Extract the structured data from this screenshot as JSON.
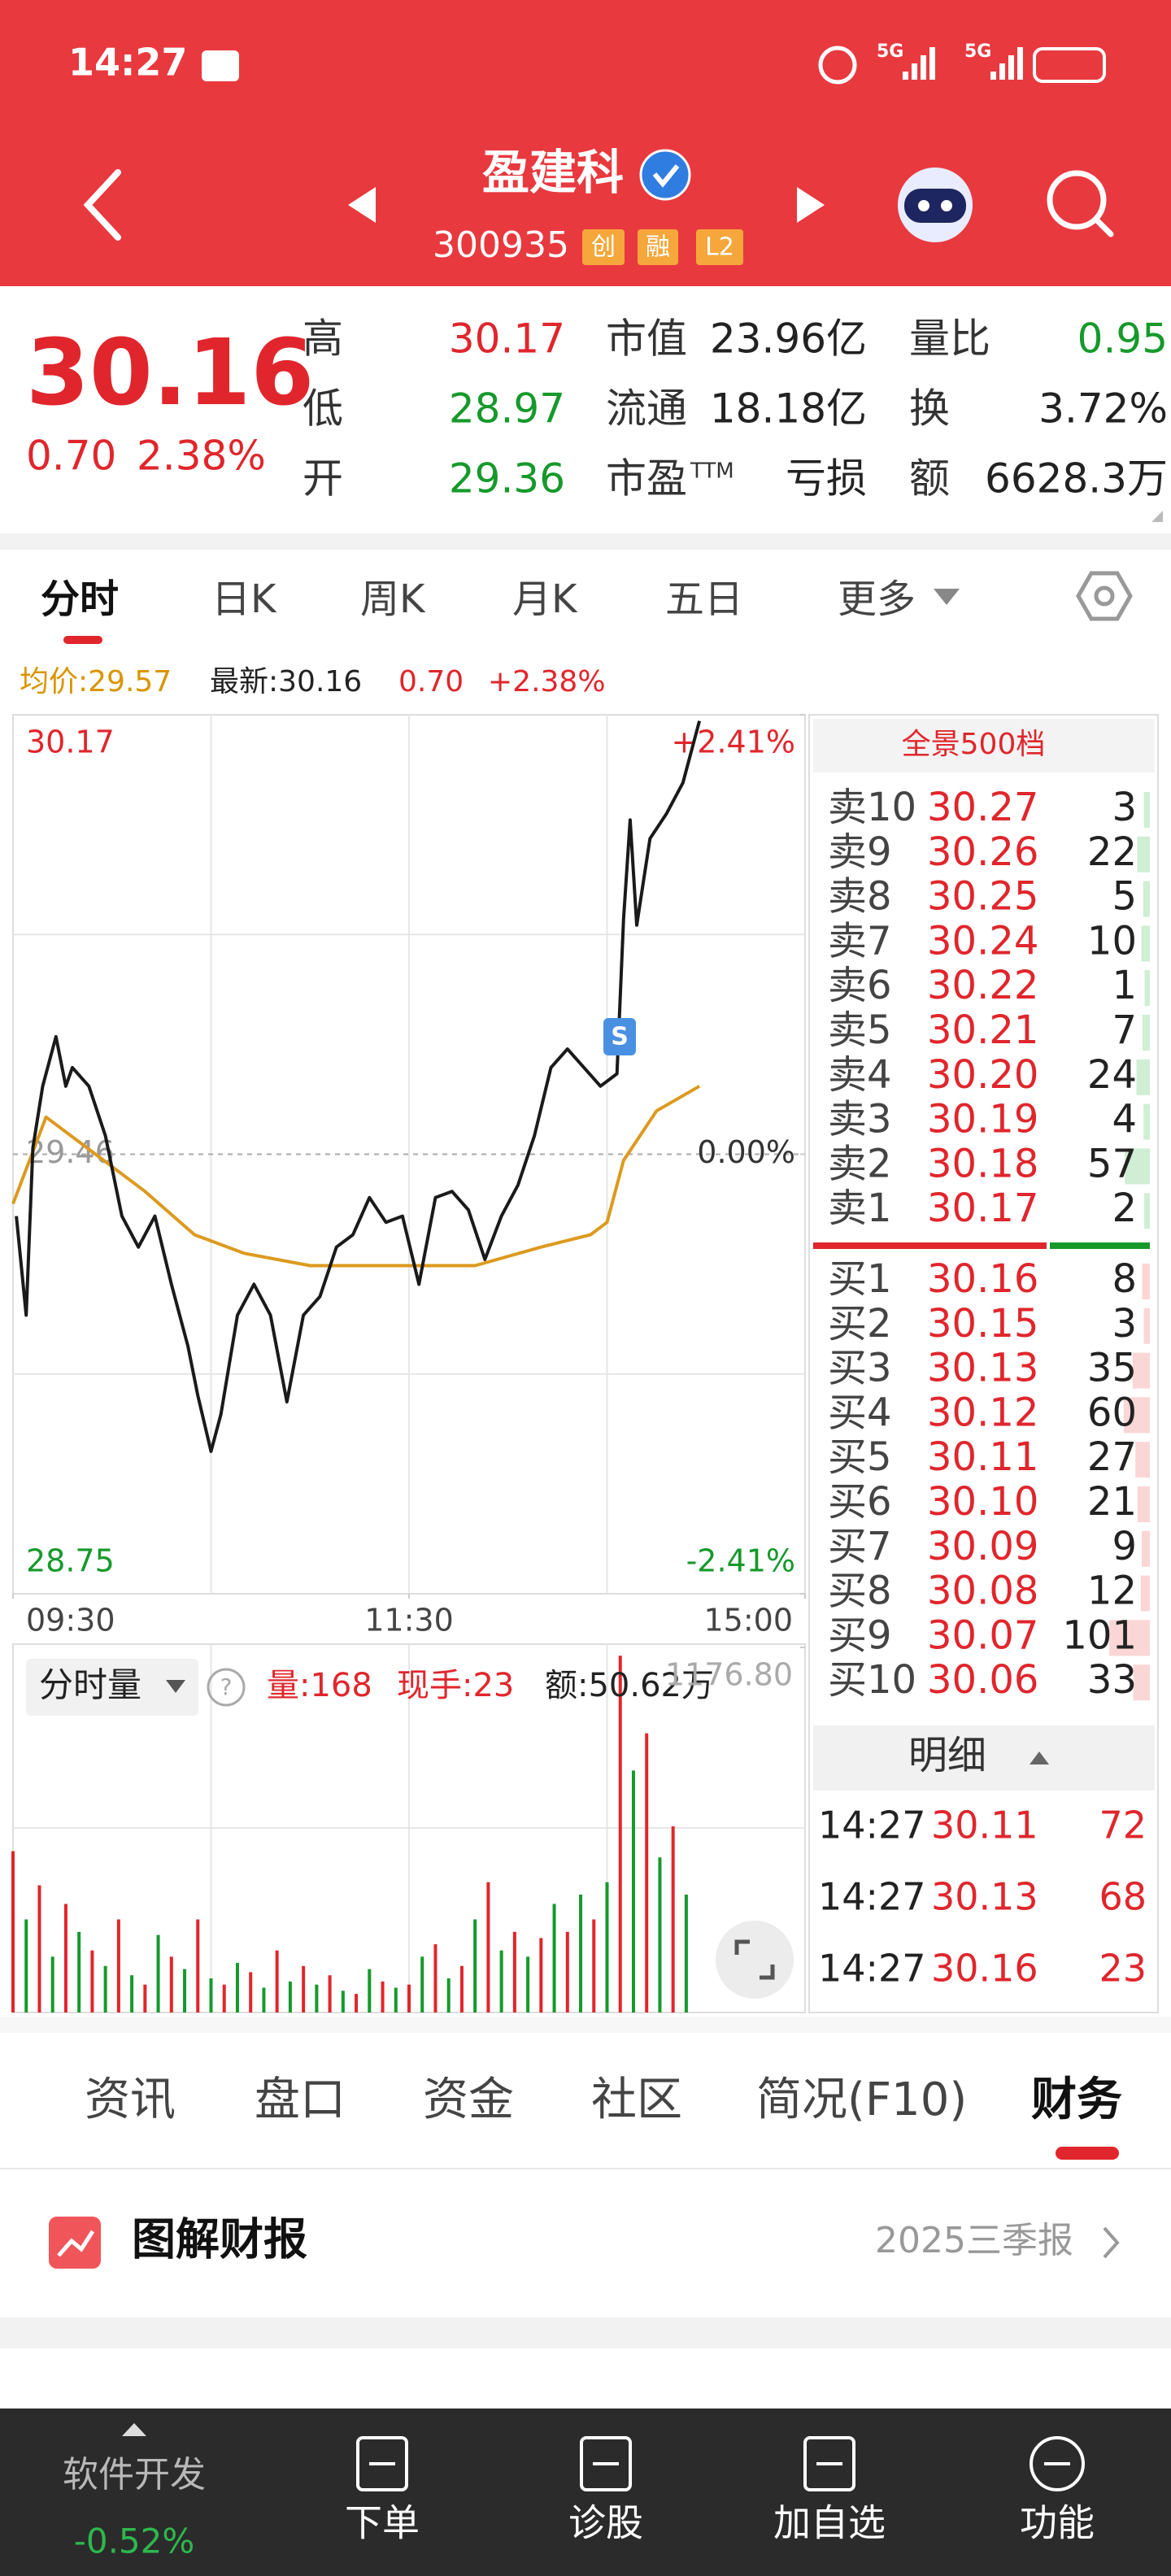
{
  "status_bar": {
    "time": "14:27",
    "network": [
      "5G",
      "5G"
    ]
  },
  "header": {
    "name": "盈建科",
    "code": "300935",
    "badges": [
      "创",
      "融",
      "L2"
    ]
  },
  "quote": {
    "price": "30.16",
    "change": "0.70",
    "change_pct": "2.38%",
    "stats": [
      {
        "label": "高",
        "value": "30.17",
        "color": "#e0262c"
      },
      {
        "label": "低",
        "value": "28.97",
        "color": "#16992b"
      },
      {
        "label": "开",
        "value": "29.36",
        "color": "#16992b"
      },
      {
        "label": "市值",
        "value": "23.96亿",
        "color": "#222222"
      },
      {
        "label": "流通",
        "value": "18.18亿",
        "color": "#222222"
      },
      {
        "label": "市盈",
        "label_note": "TTM",
        "value": "亏损",
        "color": "#222222"
      },
      {
        "label": "量比",
        "value": "0.95",
        "color": "#16992b"
      },
      {
        "label": "换",
        "value": "3.72%",
        "color": "#222222"
      },
      {
        "label": "额",
        "value": "6628.3万",
        "color": "#222222"
      }
    ]
  },
  "chart_tabs": [
    "分时",
    "日K",
    "周K",
    "月K",
    "五日",
    "更多"
  ],
  "chart_info": {
    "average": "均价:29.57",
    "latest": "最新:30.16",
    "change": "0.70",
    "change_pct": "+2.38%"
  },
  "chart": {
    "type": "line",
    "xlim": [
      0,
      240
    ],
    "xticks": [
      {
        "value": 0,
        "label": "09:30"
      },
      {
        "value": 120,
        "label": "11:30"
      },
      {
        "value": 240,
        "label": "15:00"
      }
    ],
    "xgrid": [
      60,
      120,
      180
    ],
    "ylim": [
      28.75,
      30.17
    ],
    "yticks": [
      30.17,
      29.46,
      28.75
    ],
    "ygrid": [
      29.815,
      29.105
    ],
    "y2lim": [
      -2.41,
      2.41
    ],
    "y2ticks": [
      {
        "value": 2.41,
        "label": "+2.41%"
      },
      {
        "value": 0,
        "label": "0.00%"
      },
      {
        "value": -2.41,
        "label": "-2.41%"
      }
    ],
    "signal": "S",
    "series": [
      {
        "name": "价格",
        "color": "#1a1a1a",
        "x": [
          1,
          4,
          6,
          9,
          13,
          16,
          18,
          23,
          28,
          33,
          38,
          43,
          48,
          53,
          56,
          60,
          63,
          68,
          73,
          78,
          83,
          88,
          93,
          98,
          103,
          108,
          113,
          118,
          123,
          128,
          133,
          138,
          143,
          148,
          153,
          158,
          163,
          168,
          173,
          178,
          183,
          185,
          187,
          189,
          193,
          198,
          203,
          208
        ],
        "values": [
          29.36,
          29.2,
          29.47,
          29.57,
          29.65,
          29.57,
          29.6,
          29.57,
          29.49,
          29.36,
          29.31,
          29.36,
          29.25,
          29.15,
          29.07,
          28.98,
          29.04,
          29.2,
          29.25,
          29.2,
          29.06,
          29.2,
          29.23,
          29.31,
          29.33,
          29.39,
          29.35,
          29.36,
          29.25,
          29.39,
          29.4,
          29.37,
          29.29,
          29.36,
          29.41,
          29.49,
          29.6,
          29.63,
          29.6,
          29.57,
          29.59,
          29.84,
          30.0,
          29.83,
          29.97,
          30.01,
          30.06,
          30.16
        ]
      },
      {
        "name": "均价",
        "color": "#dc9a1e",
        "x": [
          0,
          10,
          25,
          40,
          55,
          70,
          90,
          120,
          140,
          160,
          175,
          180,
          185,
          195,
          208
        ],
        "values": [
          29.38,
          29.52,
          29.46,
          29.4,
          29.33,
          29.3,
          29.28,
          29.28,
          29.28,
          29.31,
          29.33,
          29.35,
          29.45,
          29.53,
          29.57
        ]
      }
    ]
  },
  "volume": {
    "type": "bar",
    "title": "分时量",
    "volume": "量:168",
    "last": "现手:23",
    "amount": "额:50.62万",
    "ylim": [
      0,
      1176.8
    ],
    "yticks": [
      {
        "value": 1176.8,
        "label": "1176.80"
      }
    ],
    "colors": [
      "#e0262c",
      "#16992b"
    ],
    "x": [
      0,
      4,
      8,
      12,
      16,
      20,
      24,
      28,
      32,
      36,
      40,
      44,
      48,
      52,
      56,
      60,
      64,
      68,
      72,
      76,
      80,
      84,
      88,
      92,
      96,
      100,
      104,
      108,
      112,
      116,
      120,
      124,
      128,
      132,
      136,
      140,
      144,
      148,
      152,
      156,
      160,
      164,
      168,
      172,
      176,
      180,
      184,
      188,
      192,
      196,
      200,
      204
    ],
    "values": [
      520,
      300,
      410,
      180,
      350,
      260,
      200,
      150,
      300,
      120,
      90,
      250,
      180,
      140,
      300,
      110,
      90,
      160,
      130,
      80,
      200,
      100,
      150,
      90,
      120,
      70,
      60,
      140,
      100,
      80,
      90,
      180,
      220,
      110,
      150,
      300,
      420,
      200,
      260,
      180,
      240,
      350,
      260,
      380,
      300,
      420,
      1150,
      780,
      900,
      500,
      600,
      380
    ]
  },
  "order_book": {
    "title": "全景500档",
    "asks": [
      {
        "label": "卖10",
        "price": "30.27",
        "volume": 3
      },
      {
        "label": "卖9",
        "price": "30.26",
        "volume": 22
      },
      {
        "label": "卖8",
        "price": "30.25",
        "volume": 5
      },
      {
        "label": "卖7",
        "price": "30.24",
        "volume": 10
      },
      {
        "label": "卖6",
        "price": "30.22",
        "volume": 1
      },
      {
        "label": "卖5",
        "price": "30.21",
        "volume": 7
      },
      {
        "label": "卖4",
        "price": "30.20",
        "volume": 24
      },
      {
        "label": "卖3",
        "price": "30.19",
        "volume": 4
      },
      {
        "label": "卖2",
        "price": "30.18",
        "volume": 57
      },
      {
        "label": "卖1",
        "price": "30.17",
        "volume": 2
      }
    ],
    "bids": [
      {
        "label": "买1",
        "price": "30.16",
        "volume": 8
      },
      {
        "label": "买2",
        "price": "30.15",
        "volume": 3
      },
      {
        "label": "买3",
        "price": "30.13",
        "volume": 35
      },
      {
        "label": "买4",
        "price": "30.12",
        "volume": 60
      },
      {
        "label": "买5",
        "price": "30.11",
        "volume": 27
      },
      {
        "label": "买6",
        "price": "30.10",
        "volume": 21
      },
      {
        "label": "买7",
        "price": "30.09",
        "volume": 9
      },
      {
        "label": "买8",
        "price": "30.08",
        "volume": 12
      },
      {
        "label": "买9",
        "price": "30.07",
        "volume": 101
      },
      {
        "label": "买10",
        "price": "30.06",
        "volume": 33
      }
    ],
    "detail_title": "明细",
    "details": [
      [
        "14:27",
        "30.11",
        "72"
      ],
      [
        "14:27",
        "30.13",
        "68"
      ],
      [
        "14:27",
        "30.16",
        "23"
      ]
    ]
  },
  "section_tabs": [
    "资讯",
    "盘口",
    "资金",
    "社区",
    "简况(F10)",
    "财务"
  ],
  "report": {
    "title": "图解财报",
    "period": "2025三季报"
  },
  "bottom_nav": {
    "index_name": "软件开发",
    "index_change": "-0.52%",
    "items": [
      "下单",
      "诊股",
      "加自选",
      "功能"
    ]
  }
}
